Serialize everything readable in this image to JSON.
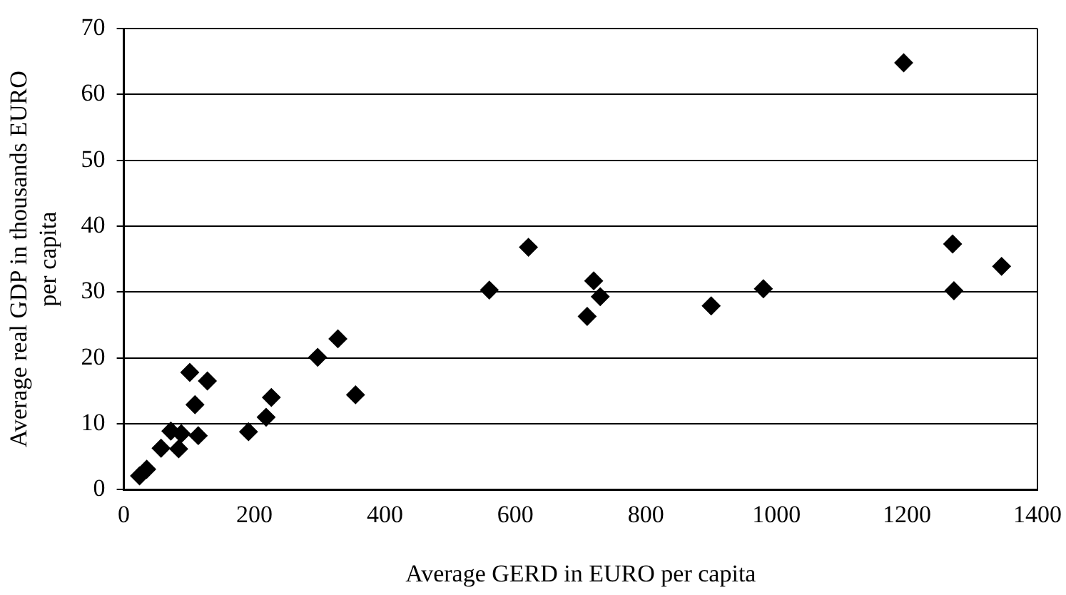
{
  "chart_data": {
    "type": "scatter",
    "xlabel": "Average GERD in EURO per capita",
    "ylabel": "Average real GDP in thousands EURO\nper capita",
    "x": [
      24,
      35,
      57,
      72,
      84,
      88,
      114,
      109,
      101,
      128,
      191,
      218,
      226,
      297,
      328,
      355,
      560,
      620,
      710,
      720,
      730,
      900,
      980,
      1195,
      1270,
      1272,
      1345
    ],
    "values": [
      2.1,
      3.1,
      6.3,
      8.9,
      6.2,
      8.5,
      8.2,
      12.9,
      17.8,
      16.5,
      8.8,
      11.0,
      14.0,
      20.1,
      22.9,
      14.4,
      30.3,
      36.8,
      26.3,
      31.7,
      29.3,
      27.9,
      30.5,
      64.8,
      37.3,
      30.2,
      33.9
    ],
    "color": "#000000",
    "marker": "diamond",
    "xlim": [
      0,
      1400
    ],
    "xticks": [
      0,
      200,
      400,
      600,
      800,
      1000,
      1200,
      1400
    ],
    "ylim": [
      0,
      70
    ],
    "yticks": [
      0,
      10,
      20,
      30,
      40,
      50,
      60,
      70
    ],
    "grid": "y",
    "legend": false
  }
}
